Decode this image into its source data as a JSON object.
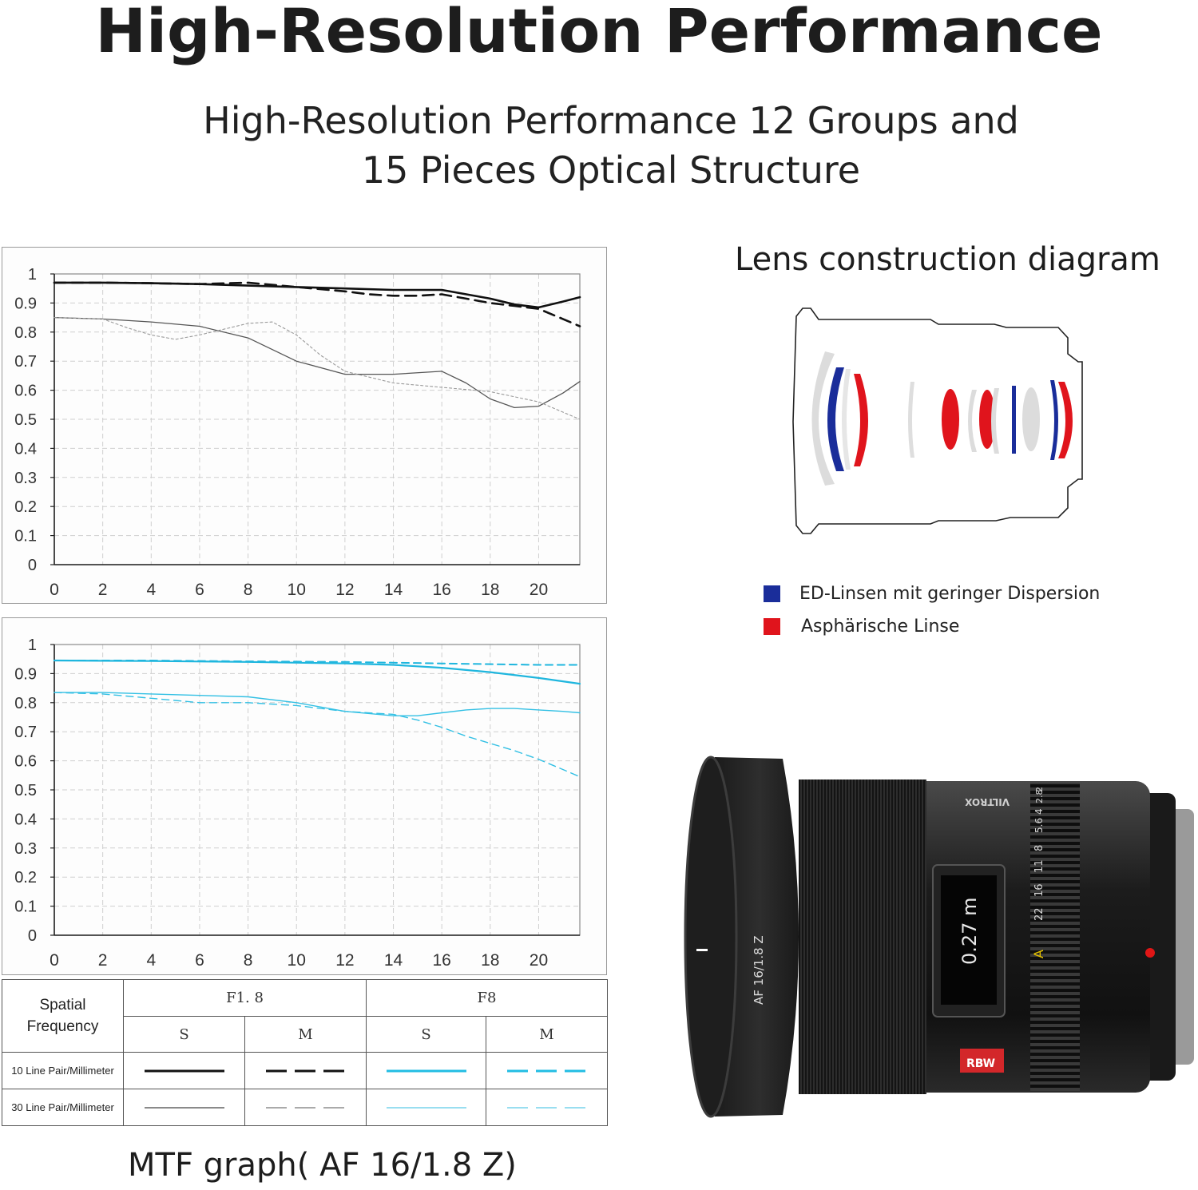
{
  "title": "High-Resolution Performance",
  "subtitle_lines": [
    "High-Resolution Performance 12 Groups and",
    "15 Pieces Optical Structure"
  ],
  "chart_data": [
    {
      "type": "line",
      "xlim": [
        0,
        21.7
      ],
      "ylim": [
        0,
        1
      ],
      "xticks": [
        "0",
        "2",
        "4",
        "6",
        "8",
        "10",
        "12",
        "14",
        "16",
        "18",
        "20"
      ],
      "yticks": [
        "0",
        "0.1",
        "0.2",
        "0.3",
        "0.4",
        "0.5",
        "0.6",
        "0.7",
        "0.8",
        "0.9",
        "1"
      ],
      "grid": true,
      "series": [
        {
          "name": "F1.8 S 10 Line Pair/Millimeter",
          "color": "#111111",
          "x": [
            0,
            2,
            4,
            6,
            8,
            10,
            12,
            14,
            16,
            18,
            19,
            20,
            21,
            21.7
          ],
          "y": [
            0.97,
            0.97,
            0.968,
            0.965,
            0.96,
            0.955,
            0.95,
            0.945,
            0.945,
            0.915,
            0.895,
            0.885,
            0.905,
            0.92
          ]
        },
        {
          "name": "F1.8 M 10 Line Pair/Millimeter",
          "color": "#111111",
          "x": [
            0,
            2,
            4,
            6,
            8,
            10,
            12,
            13,
            14,
            15,
            16,
            17,
            18,
            19,
            20,
            21,
            21.7
          ],
          "y": [
            0.97,
            0.97,
            0.968,
            0.965,
            0.97,
            0.955,
            0.94,
            0.93,
            0.925,
            0.925,
            0.93,
            0.915,
            0.9,
            0.89,
            0.88,
            0.845,
            0.82
          ]
        },
        {
          "name": "F1.8 S 30 Line Pair/Millimeter",
          "color": "#555555",
          "x": [
            0,
            2,
            4,
            6,
            8,
            10,
            12,
            14,
            16,
            17,
            18,
            19,
            20,
            21,
            21.7
          ],
          "y": [
            0.85,
            0.845,
            0.835,
            0.82,
            0.78,
            0.7,
            0.655,
            0.655,
            0.665,
            0.625,
            0.57,
            0.54,
            0.545,
            0.59,
            0.63
          ]
        },
        {
          "name": "F1.8 M 30 Line Pair/Millimeter",
          "color": "#9a9a9a",
          "x": [
            0,
            2,
            3,
            4,
            5,
            6,
            7,
            8,
            9,
            10,
            11,
            12,
            14,
            16,
            18,
            20,
            21.7
          ],
          "y": [
            0.85,
            0.845,
            0.815,
            0.79,
            0.775,
            0.79,
            0.81,
            0.83,
            0.835,
            0.79,
            0.72,
            0.665,
            0.625,
            0.61,
            0.595,
            0.56,
            0.5
          ]
        }
      ]
    },
    {
      "type": "line",
      "xlim": [
        0,
        21.7
      ],
      "ylim": [
        0,
        1
      ],
      "xticks": [
        "0",
        "2",
        "4",
        "6",
        "8",
        "10",
        "12",
        "14",
        "16",
        "18",
        "20"
      ],
      "yticks": [
        "0",
        "0.1",
        "0.2",
        "0.3",
        "0.4",
        "0.5",
        "0.6",
        "0.7",
        "0.8",
        "0.9",
        "1"
      ],
      "grid": true,
      "series": [
        {
          "name": "F8 S 10 Line Pair/Millimeter",
          "color": "#1fb6de",
          "x": [
            0,
            4,
            8,
            12,
            14,
            16,
            18,
            20,
            21.7
          ],
          "y": [
            0.945,
            0.943,
            0.94,
            0.935,
            0.93,
            0.92,
            0.905,
            0.885,
            0.865
          ]
        },
        {
          "name": "F8 M 10 Line Pair/Millimeter",
          "color": "#1fb6de",
          "x": [
            0,
            4,
            8,
            12,
            16,
            20,
            21.7
          ],
          "y": [
            0.945,
            0.945,
            0.942,
            0.94,
            0.935,
            0.93,
            0.93
          ]
        },
        {
          "name": "F8 S 30 Line Pair/Millimeter",
          "color": "#33c0e4",
          "x": [
            0,
            2,
            4,
            6,
            8,
            10,
            12,
            14,
            15,
            16,
            17,
            18,
            19,
            20,
            21,
            21.7
          ],
          "y": [
            0.835,
            0.835,
            0.83,
            0.825,
            0.82,
            0.8,
            0.77,
            0.755,
            0.755,
            0.765,
            0.775,
            0.78,
            0.78,
            0.775,
            0.77,
            0.765
          ]
        },
        {
          "name": "F8 M 30 Line Pair/Millimeter",
          "color": "#33c0e4",
          "x": [
            0,
            2,
            4,
            6,
            8,
            10,
            12,
            14,
            15,
            16,
            17,
            18,
            19,
            20,
            21,
            21.7
          ],
          "y": [
            0.835,
            0.83,
            0.815,
            0.8,
            0.8,
            0.79,
            0.77,
            0.76,
            0.74,
            0.715,
            0.685,
            0.66,
            0.635,
            0.605,
            0.57,
            0.545
          ]
        }
      ]
    }
  ],
  "legend_table": {
    "header": "Spatial Frequency",
    "apertures": [
      "F1. 8",
      "F8"
    ],
    "types": [
      "S",
      "M",
      "S",
      "M"
    ],
    "rows": [
      "10 Line Pair/Millimeter",
      "30 Line Pair/Millimeter"
    ],
    "colors": {
      "f18": "#111111",
      "f8": "#22bde3"
    }
  },
  "mtf_caption": "MTF graph( AF 16/1.8 Z)",
  "diagram": {
    "title": "Lens construction diagram",
    "legend": [
      {
        "label": "ED-Linsen mit geringer Dispersion",
        "color": "#1a2d9a"
      },
      {
        "label": "Asphärische Linse",
        "color": "#e0141c"
      }
    ]
  },
  "lens_photo": {
    "brand": "VILTROX",
    "model": "AF 16/1.8 Z",
    "display_value": "0.27 m",
    "badge": "RBW",
    "aperture_scale": [
      "22",
      "16",
      "11",
      "8",
      "5.6",
      "4",
      "2.8",
      "2"
    ],
    "mode_mark": "A"
  }
}
